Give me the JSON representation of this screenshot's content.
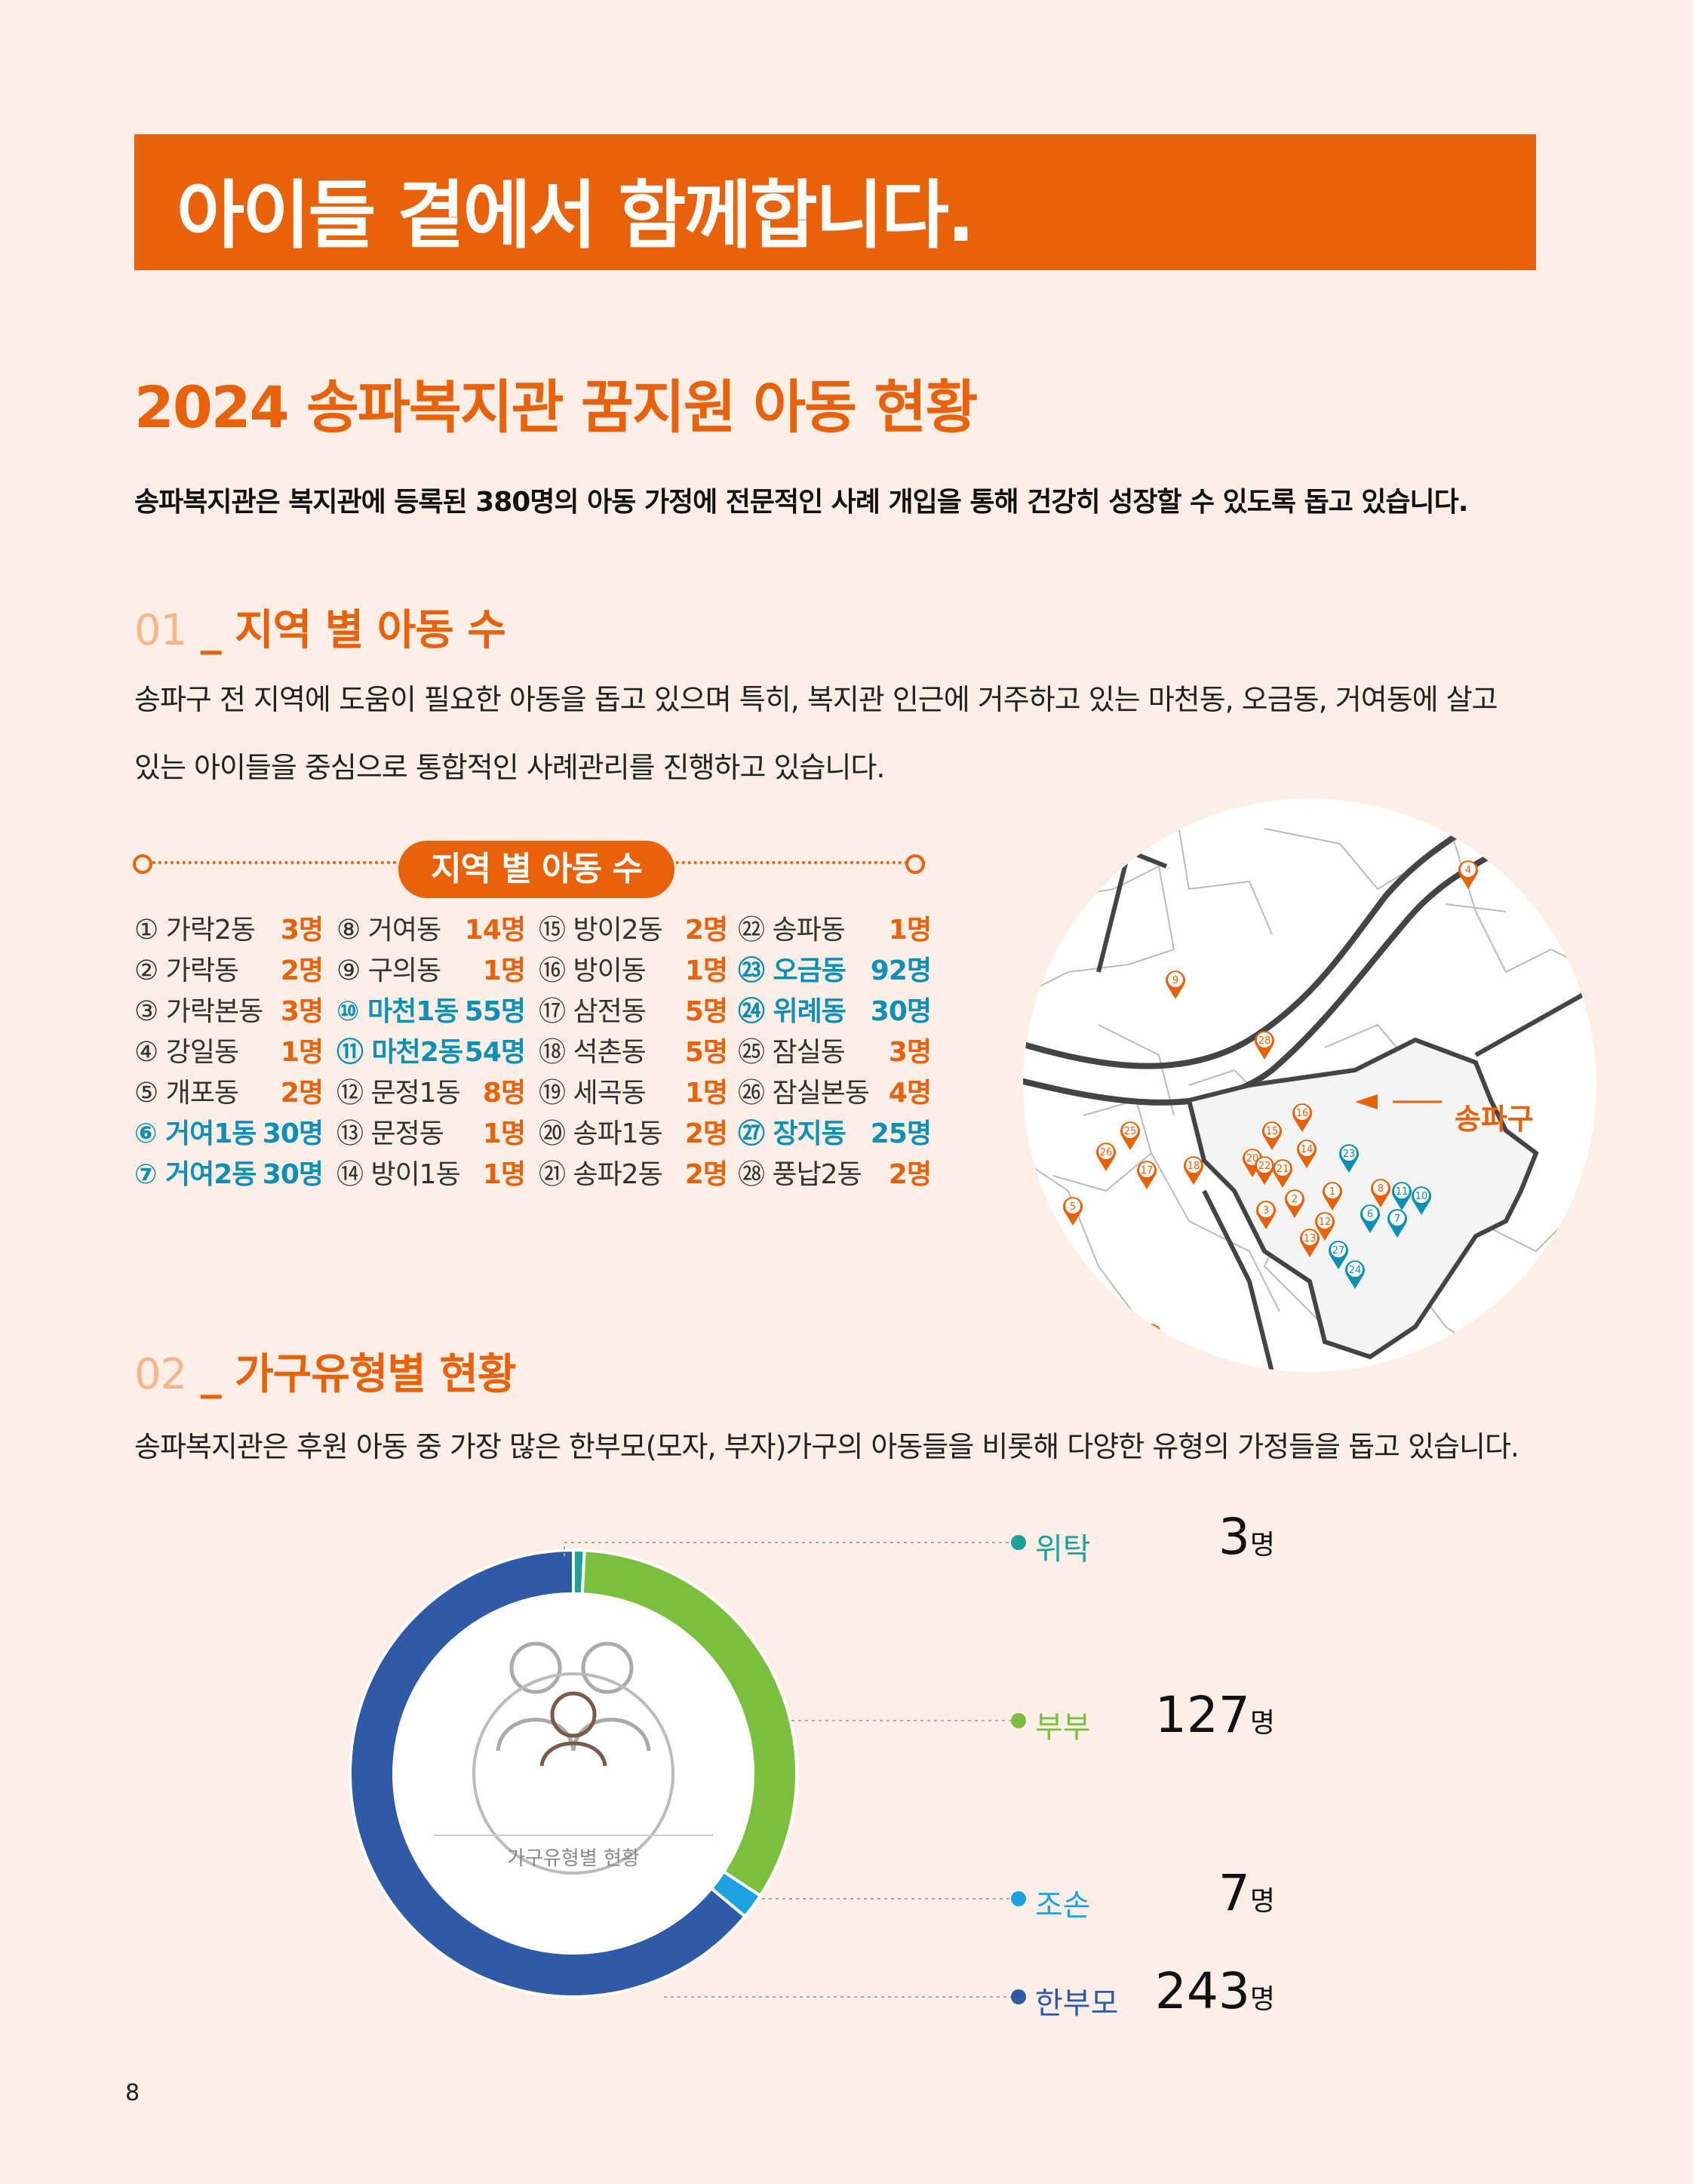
{
  "banner": {
    "title": "아이들 곁에서 함께합니다."
  },
  "section": {
    "title": "2024 송파복지관 꿈지원 아동 현황",
    "intro": "송파복지관은 복지관에 등록된 380명의 아동 가정에 전문적인 사례 개입을 통해 건강히 성장할 수 있도록 돕고 있습니다."
  },
  "part1": {
    "number": "01",
    "title": "_ 지역 별 아동 수",
    "desc_line1": "송파구 전 지역에 도움이 필요한 아동을 돕고 있으며 특히, 복지관 인근에 거주하고 있는 마천동, 오금동, 거여동에 살고",
    "desc_line2": "있는 아이들을 중심으로 통합적인 사례관리를 진행하고 있습니다.",
    "table_title": "지역 별 아동 수",
    "rows": [
      [
        {
          "name": "① 가락2동",
          "count": "3명",
          "hl": false
        },
        {
          "name": "⑧ 거여동",
          "count": "14명",
          "hl": false
        },
        {
          "name": "⑮ 방이2동",
          "count": "2명",
          "hl": false
        },
        {
          "name": "㉒ 송파동",
          "count": "1명",
          "hl": false
        }
      ],
      [
        {
          "name": "② 가락동",
          "count": "2명",
          "hl": false
        },
        {
          "name": "⑨ 구의동",
          "count": "1명",
          "hl": false
        },
        {
          "name": "⑯ 방이동",
          "count": "1명",
          "hl": false
        },
        {
          "name": "㉓ 오금동",
          "count": "92명",
          "hl": true
        }
      ],
      [
        {
          "name": "③ 가락본동",
          "count": "3명",
          "hl": false
        },
        {
          "name": "⑩ 마천1동",
          "count": "55명",
          "hl": true
        },
        {
          "name": "⑰ 삼전동",
          "count": "5명",
          "hl": false
        },
        {
          "name": "㉔ 위례동",
          "count": "30명",
          "hl": true
        }
      ],
      [
        {
          "name": "④ 강일동",
          "count": "1명",
          "hl": false
        },
        {
          "name": "⑪ 마천2동",
          "count": "54명",
          "hl": true
        },
        {
          "name": "⑱ 석촌동",
          "count": "5명",
          "hl": false
        },
        {
          "name": "㉕ 잠실동",
          "count": "3명",
          "hl": false
        }
      ],
      [
        {
          "name": "⑤ 개포동",
          "count": "2명",
          "hl": false
        },
        {
          "name": "⑫ 문정1동",
          "count": "8명",
          "hl": false
        },
        {
          "name": "⑲ 세곡동",
          "count": "1명",
          "hl": false
        },
        {
          "name": "㉖ 잠실본동",
          "count": "4명",
          "hl": false
        }
      ],
      [
        {
          "name": "⑥ 거여1동",
          "count": "30명",
          "hl": true
        },
        {
          "name": "⑬ 문정동",
          "count": "1명",
          "hl": false
        },
        {
          "name": "⑳ 송파1동",
          "count": "2명",
          "hl": false
        },
        {
          "name": "㉗ 장지동",
          "count": "25명",
          "hl": true
        }
      ],
      [
        {
          "name": "⑦ 거여2동",
          "count": "30명",
          "hl": true
        },
        {
          "name": "⑭ 방이1동",
          "count": "1명",
          "hl": false
        },
        {
          "name": "㉑ 송파2동",
          "count": "2명",
          "hl": false
        },
        {
          "name": "㉘ 풍납2동",
          "count": "2명",
          "hl": false
        }
      ]
    ],
    "map_label": "송파구",
    "map_markers": [
      "1",
      "2",
      "3",
      "4",
      "5",
      "6",
      "7",
      "8",
      "9",
      "10",
      "11",
      "12",
      "13",
      "14",
      "15",
      "16",
      "17",
      "18",
      "19",
      "20",
      "21",
      "22",
      "23",
      "24",
      "25",
      "26",
      "27",
      "28"
    ]
  },
  "part2": {
    "number": "02",
    "title": "_ 가구유형별 현황",
    "desc": "송파복지관은 후원 아동 중 가장 많은 한부모(모자, 부자)가구의 아동들을 비롯해 다양한 유형의 가정들을 돕고 있습니다.",
    "donut_caption": "가구유형별 현황",
    "colors": {
      "위탁": "#1aa39a",
      "부부": "#7bbf3f",
      "조손": "#1aa3e0",
      "한부모": "#2f5aa8"
    }
  },
  "chart_data": {
    "type": "pie",
    "title": "가구유형별 현황",
    "categories": [
      "위탁",
      "부부",
      "조손",
      "한부모"
    ],
    "values": [
      3,
      127,
      7,
      243
    ],
    "unit": "명",
    "display_values": [
      "3",
      "127",
      "7",
      "243"
    ]
  },
  "page_number": "8"
}
